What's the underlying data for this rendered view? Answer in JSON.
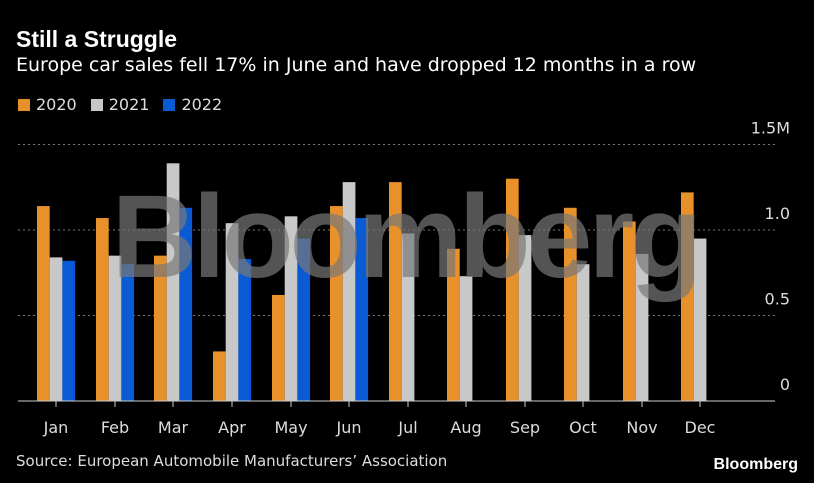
{
  "header": {
    "title": "Still a Struggle",
    "subtitle": "Europe car sales fell 17% in June and have dropped 12 months in a row"
  },
  "footer": {
    "source": "Source: European Automobile Manufacturers’ Association",
    "logo": "Bloomberg"
  },
  "watermark": "Bloomberg",
  "chart_data": {
    "type": "bar",
    "categories": [
      "Jan",
      "Feb",
      "Mar",
      "Apr",
      "May",
      "Jun",
      "Jul",
      "Aug",
      "Sep",
      "Oct",
      "Nov",
      "Dec"
    ],
    "series": [
      {
        "name": "2020",
        "color": "#e8902a",
        "values": [
          1.14,
          1.07,
          0.85,
          0.29,
          0.62,
          1.14,
          1.28,
          0.89,
          1.3,
          1.13,
          1.05,
          1.22
        ]
      },
      {
        "name": "2021",
        "color": "#c8c8c8",
        "values": [
          0.84,
          0.85,
          1.39,
          1.04,
          1.08,
          1.28,
          0.98,
          0.73,
          0.97,
          0.8,
          0.86,
          0.95
        ]
      },
      {
        "name": "2022",
        "color": "#0a5ad4",
        "values": [
          0.82,
          0.8,
          1.13,
          0.83,
          0.95,
          1.07,
          null,
          null,
          null,
          null,
          null,
          null
        ]
      }
    ],
    "yticks": [
      {
        "value": 0,
        "label": "0"
      },
      {
        "value": 0.5,
        "label": "0.5"
      },
      {
        "value": 1.0,
        "label": "1.0"
      },
      {
        "value": 1.5,
        "label": "1.5M"
      }
    ],
    "ylim": [
      0,
      1.5
    ],
    "grid": true,
    "legend": "top-left"
  }
}
